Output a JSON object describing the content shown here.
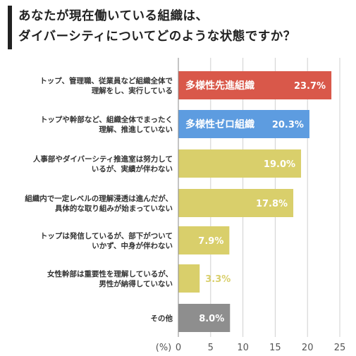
{
  "title_lines": [
    "あなたが現在働いている組織は、",
    "ダイバーシティについてどのような状態ですか？"
  ],
  "unit_label": "(%)",
  "chart_data": {
    "type": "bar",
    "orientation": "horizontal",
    "title": "あなたが現在働いている組織は、ダイバーシティについてどのような状態ですか？",
    "xlabel": "(%)",
    "ylabel": "",
    "xlim": [
      0,
      25
    ],
    "xticks": [
      0,
      5,
      10,
      15,
      20,
      25
    ],
    "grid": true,
    "categories": [
      [
        "トップ、管理職、従業員など組織全体で",
        "理解をし、実行している"
      ],
      [
        "トップや幹部など、組織全体でまったく",
        "理解、推進していない"
      ],
      [
        "人事部やダイバーシティ推進室は努力して",
        "いるが、実績が伴わない"
      ],
      [
        "組織内で一定レベルの理解浸透は進んだが、",
        "具体的な取り組みが始まっていない"
      ],
      [
        "トップは発信しているが、部下がついて",
        "いかず、中身が伴わない"
      ],
      [
        "女性幹部は重要性を理解しているが、",
        "男性が納得していない"
      ],
      [
        "その他"
      ]
    ],
    "values": [
      23.7,
      20.3,
      19.0,
      17.8,
      7.9,
      3.3,
      8.0
    ],
    "value_labels": [
      "23.7%",
      "20.3%",
      "19.0%",
      "17.8%",
      "7.9%",
      "3.3%",
      "8.0%"
    ],
    "bar_tags": [
      "多様性先進組織",
      "多様性ゼロ組織",
      "",
      "",
      "",
      "",
      ""
    ],
    "colors": [
      "#d9584a",
      "#5d9ce0",
      "#d9cf6b",
      "#d9cf6b",
      "#d9cf6b",
      "#d9cf6b",
      "#8e8e8e"
    ],
    "label_outside_color": "#d9cf6b",
    "grid_color": "#d0d0d0",
    "axis_color": "#888888"
  }
}
